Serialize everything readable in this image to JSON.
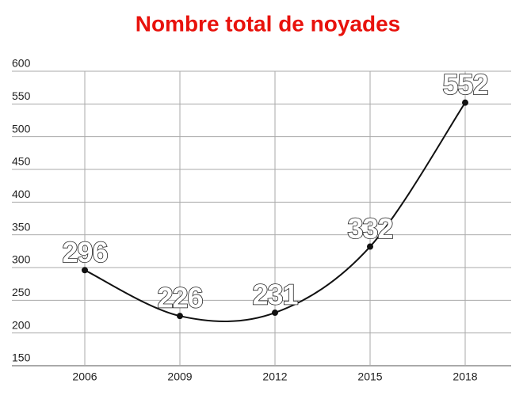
{
  "chart_data": {
    "type": "line",
    "title": "Nombre total de noyades",
    "categories": [
      "2006",
      "2009",
      "2012",
      "2015",
      "2018"
    ],
    "values": [
      296,
      226,
      231,
      332,
      552
    ],
    "color": "#111111",
    "title_color": "#e8120c",
    "ylim": [
      150,
      600
    ],
    "yticks": [
      150,
      200,
      250,
      300,
      350,
      400,
      450,
      500,
      550,
      600
    ],
    "grid": true
  }
}
